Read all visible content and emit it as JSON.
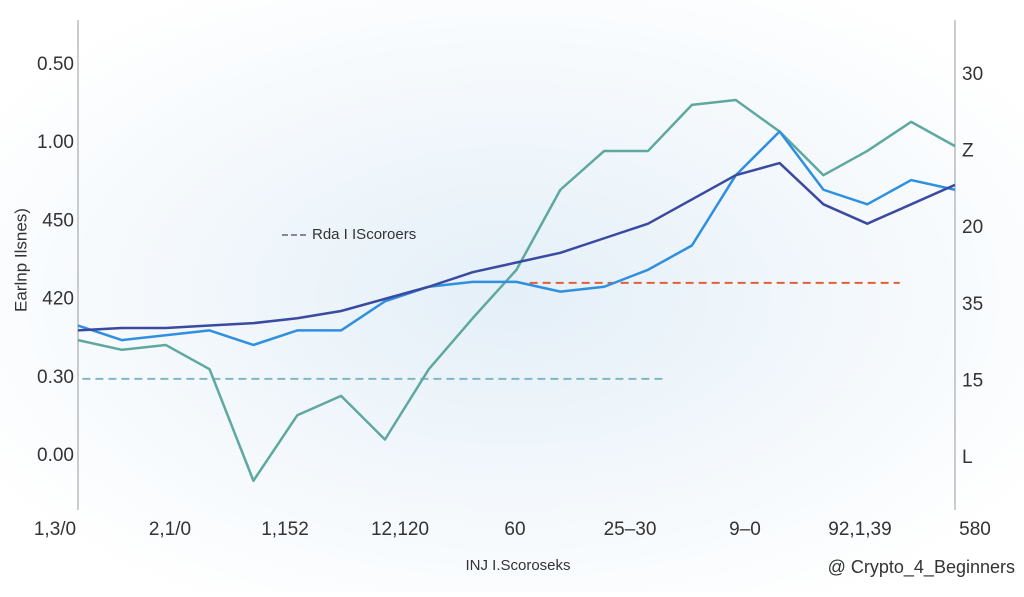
{
  "chart_data": {
    "type": "line",
    "y_label": "Earlnp Ilsnes)",
    "x_label": "INJ I.Scoroseks",
    "legend_label": "Rda I IScoroers",
    "watermark": "@ Crypto_4_Beginners",
    "categories": [
      "1,3/0",
      "2,1/0",
      "1,152",
      "12,120",
      "60",
      "25–30",
      "9–0",
      "92,1,39",
      "580"
    ],
    "y_labels": [
      "0.50",
      "1.00",
      "450",
      "420",
      "0.30",
      "0.00"
    ],
    "y2_labels": [
      "30",
      "Z",
      "20",
      "35",
      "15",
      "L"
    ],
    "xlim": [
      0,
      100
    ],
    "ylim": [
      0,
      100
    ],
    "x": [
      0,
      5,
      10,
      15,
      20,
      25,
      30,
      35,
      40,
      45,
      50,
      55,
      60,
      65,
      70,
      75,
      80,
      85,
      90,
      95,
      100
    ],
    "series": [
      {
        "color": "#5fa8a0",
        "values": [
          34,
          32,
          33,
          28,
          5,
          18.5,
          22.5,
          13.5,
          28,
          38.5,
          48.5,
          65,
          73,
          73,
          82.5,
          83.5,
          77,
          68,
          73,
          79,
          74
        ]
      },
      {
        "color": "#2f8fe0",
        "values": [
          37,
          34,
          35,
          36,
          33,
          36,
          36,
          42,
          45,
          46,
          46,
          44,
          45,
          48.5,
          53.5,
          68,
          77,
          65,
          62,
          67,
          65
        ]
      },
      {
        "color": "#3a4aa0",
        "values": [
          36,
          36.5,
          36.5,
          37,
          37.5,
          38.5,
          40,
          42.5,
          45,
          48,
          50,
          52,
          55,
          58,
          63,
          68,
          70.5,
          62,
          58,
          62,
          66
        ]
      }
    ],
    "reference_lines": [
      {
        "color": "#e0603a",
        "value": 45.8,
        "x": [
          51.5,
          93.7
        ]
      },
      {
        "color": "#7fb8c0",
        "value": 26,
        "x": [
          0.5,
          67
        ]
      }
    ]
  }
}
